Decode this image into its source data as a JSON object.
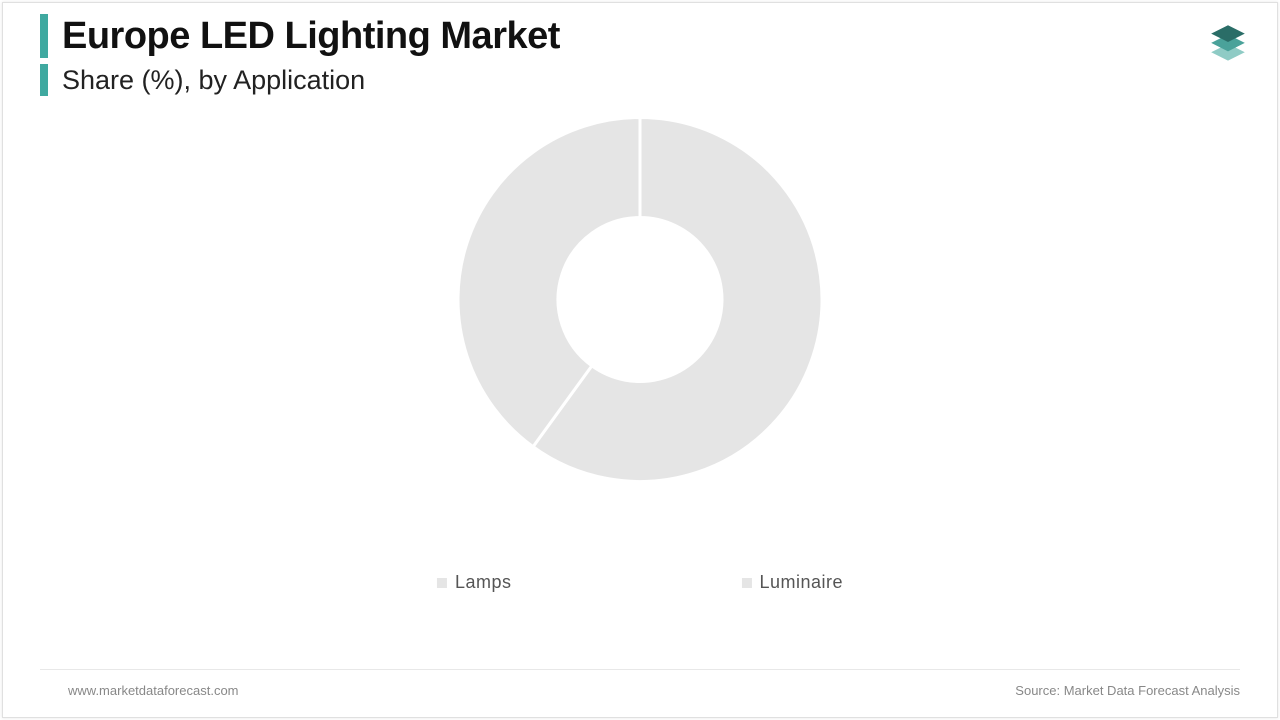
{
  "header": {
    "title": "Europe LED Lighting Market",
    "subtitle": "Share (%), by Application"
  },
  "chart": {
    "type": "donut",
    "outer_radius": 182,
    "inner_radius": 82,
    "background_color": "#ffffff",
    "gap_stroke": "#ffffff",
    "gap_width": 3,
    "slices": [
      {
        "label": "Lamps",
        "value": 60,
        "color": "#e5e5e5"
      },
      {
        "label": "Luminaire",
        "value": 40,
        "color": "#e5e5e5"
      }
    ]
  },
  "legend": {
    "items": [
      {
        "label": "Lamps",
        "swatch_color": "#e5e5e5"
      },
      {
        "label": "Luminaire",
        "swatch_color": "#e5e5e5"
      }
    ],
    "fontsize": 18,
    "text_color": "#555555"
  },
  "footer": {
    "left": "www.marketdataforecast.com",
    "right": "Source: Market Data Forecast Analysis"
  },
  "accent_color": "#3fa9a0",
  "logo": {
    "name": "stacked-layers-icon",
    "colors": [
      "#2a6d67",
      "#4aa29a",
      "#8fcbc5"
    ]
  }
}
